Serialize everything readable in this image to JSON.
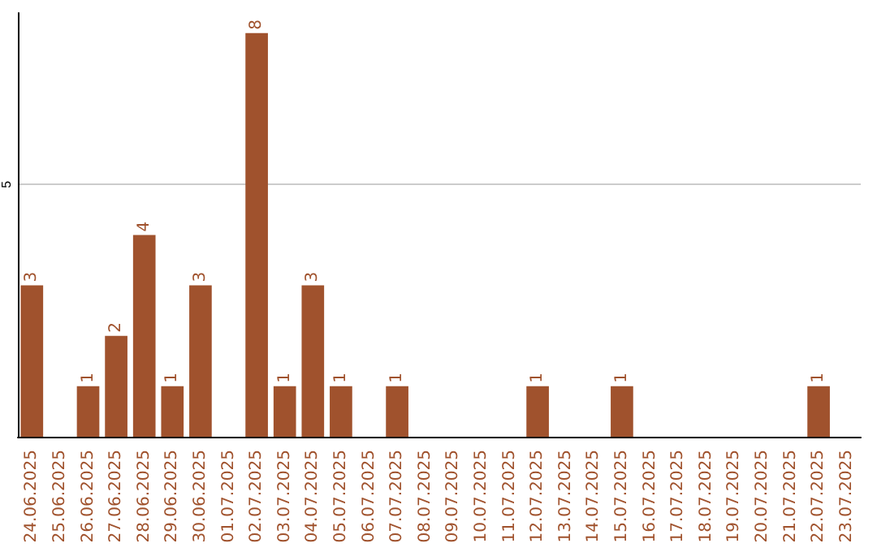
{
  "chart_data": {
    "type": "bar",
    "categories": [
      "24.06.2025",
      "25.06.2025",
      "26.06.2025",
      "27.06.2025",
      "28.06.2025",
      "29.06.2025",
      "30.06.2025",
      "01.07.2025",
      "02.07.2025",
      "03.07.2025",
      "04.07.2025",
      "05.07.2025",
      "06.07.2025",
      "07.07.2025",
      "08.07.2025",
      "09.07.2025",
      "10.07.2025",
      "11.07.2025",
      "12.07.2025",
      "13.07.2025",
      "14.07.2025",
      "15.07.2025",
      "16.07.2025",
      "17.07.2025",
      "18.07.2025",
      "19.07.2025",
      "20.07.2025",
      "21.07.2025",
      "22.07.2025",
      "23.07.2025"
    ],
    "values": [
      3,
      0,
      1,
      2,
      4,
      1,
      3,
      0,
      8,
      1,
      3,
      1,
      0,
      1,
      0,
      0,
      0,
      0,
      1,
      0,
      0,
      1,
      0,
      0,
      0,
      0,
      0,
      0,
      1,
      0
    ],
    "value_labels": [
      "3",
      null,
      "1",
      "2",
      "4",
      "1",
      "3",
      null,
      "8",
      "1",
      "3",
      "1",
      null,
      "1",
      null,
      null,
      null,
      null,
      "1",
      null,
      null,
      "1",
      null,
      null,
      null,
      null,
      null,
      null,
      "1",
      null
    ],
    "color": "#a0522d",
    "ylim": [
      0,
      8.4
    ],
    "yticks": [
      5
    ],
    "grid": "y"
  }
}
